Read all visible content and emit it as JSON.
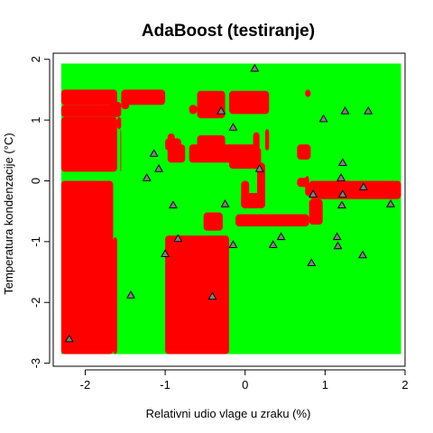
{
  "chart_data": {
    "type": "scatter",
    "title": "AdaBoost (testiranje)",
    "xlabel": "Relativni udio vlage u zraku (%)",
    "ylabel": "Temperatura kondenzacije (°C)",
    "xlim": [
      -2.4,
      2.0
    ],
    "ylim": [
      -3.05,
      2.1
    ],
    "xticks": [
      -2,
      -1,
      0,
      1,
      2
    ],
    "yticks": [
      -3,
      -2,
      -1,
      0,
      1,
      2
    ],
    "colors": {
      "class_a": "#ff0000",
      "class_b": "#00ff00",
      "point_fill": "#7f7f7f",
      "point_edge": "#000000"
    },
    "regions": {
      "background_class": "class_b",
      "domain": {
        "x": [
          -2.3,
          1.95
        ],
        "y": [
          -2.85,
          1.93
        ]
      },
      "class_a_rects": [
        [
          -2.3,
          -1.6,
          1.5,
          1.25
        ],
        [
          -1.55,
          -1.0,
          1.5,
          1.25
        ],
        [
          -2.3,
          -1.55,
          1.25,
          1.05
        ],
        [
          -1.6,
          -1.55,
          1.05,
          0.85
        ],
        [
          -2.3,
          -1.6,
          1.05,
          0.15
        ],
        [
          -1.56,
          -1.55,
          0.85,
          0.15
        ],
        [
          -1.55,
          -1.45,
          1.42,
          1.18
        ],
        [
          -2.3,
          -1.65,
          0.0,
          -2.85
        ],
        [
          -1.65,
          -1.6,
          -0.93,
          -2.85
        ],
        [
          -1.0,
          -0.2,
          -0.9,
          -2.85
        ],
        [
          -0.6,
          -0.25,
          1.48,
          1.03
        ],
        [
          -0.2,
          0.3,
          1.48,
          1.1
        ],
        [
          -0.6,
          -0.25,
          0.75,
          0.5
        ],
        [
          -0.7,
          0.15,
          0.6,
          0.3
        ],
        [
          -0.97,
          -0.75,
          0.6,
          0.3
        ],
        [
          -1.0,
          -0.8,
          0.7,
          0.5
        ],
        [
          -0.97,
          -0.88,
          0.78,
          0.5
        ],
        [
          -0.2,
          0.2,
          0.55,
          0.2
        ],
        [
          0.1,
          0.18,
          0.8,
          0.2
        ],
        [
          0.25,
          0.3,
          0.85,
          0.5
        ],
        [
          0.65,
          0.82,
          0.6,
          0.35
        ],
        [
          0.15,
          0.25,
          0.3,
          -0.45
        ],
        [
          -0.05,
          0.05,
          0.0,
          -0.45
        ],
        [
          -0.12,
          0.8,
          -0.55,
          -0.75
        ],
        [
          -0.52,
          -0.28,
          -0.52,
          -0.82
        ],
        [
          0.8,
          1.95,
          0.0,
          -0.3
        ],
        [
          0.75,
          0.85,
          -0.05,
          -0.25
        ],
        [
          1.3,
          1.45,
          -0.1,
          -0.25
        ],
        [
          0.65,
          0.8,
          0.05,
          -0.1
        ],
        [
          0.75,
          0.8,
          0.08,
          -0.12
        ],
        [
          0.8,
          0.97,
          -0.3,
          -0.72
        ],
        [
          -0.05,
          0.25,
          -0.2,
          -0.45
        ],
        [
          0.75,
          0.82,
          1.5,
          1.38
        ],
        [
          -0.7,
          -0.6,
          1.25,
          1.1
        ],
        [
          -1.7,
          -1.55,
          1.3,
          1.15
        ],
        [
          -1.4,
          -1.3,
          1.45,
          1.35
        ]
      ]
    },
    "points": [
      {
        "x": -2.2,
        "y": -2.6
      },
      {
        "x": -1.43,
        "y": -1.88
      },
      {
        "x": -1.23,
        "y": 0.05
      },
      {
        "x": -1.14,
        "y": 0.45
      },
      {
        "x": -1.08,
        "y": 0.2
      },
      {
        "x": -1.0,
        "y": -1.2
      },
      {
        "x": -0.9,
        "y": -0.4
      },
      {
        "x": -0.84,
        "y": -0.95
      },
      {
        "x": -0.41,
        "y": -1.9
      },
      {
        "x": -0.3,
        "y": 1.15
      },
      {
        "x": -0.25,
        "y": -0.38
      },
      {
        "x": -0.15,
        "y": 0.88
      },
      {
        "x": -0.15,
        "y": -1.05
      },
      {
        "x": 0.12,
        "y": 1.85
      },
      {
        "x": 0.18,
        "y": 0.2
      },
      {
        "x": 0.35,
        "y": -1.05
      },
      {
        "x": 0.45,
        "y": -0.92
      },
      {
        "x": 0.85,
        "y": -0.22
      },
      {
        "x": 0.83,
        "y": -1.35
      },
      {
        "x": 0.98,
        "y": 1.02
      },
      {
        "x": 1.15,
        "y": -0.92
      },
      {
        "x": 1.16,
        "y": -1.07
      },
      {
        "x": 1.2,
        "y": 0.05
      },
      {
        "x": 1.22,
        "y": 0.3
      },
      {
        "x": 1.22,
        "y": -0.22
      },
      {
        "x": 1.21,
        "y": -0.4
      },
      {
        "x": 1.25,
        "y": 1.15
      },
      {
        "x": 1.48,
        "y": -0.1
      },
      {
        "x": 1.47,
        "y": -1.22
      },
      {
        "x": 1.54,
        "y": 1.15
      },
      {
        "x": 1.82,
        "y": -0.38
      }
    ]
  }
}
